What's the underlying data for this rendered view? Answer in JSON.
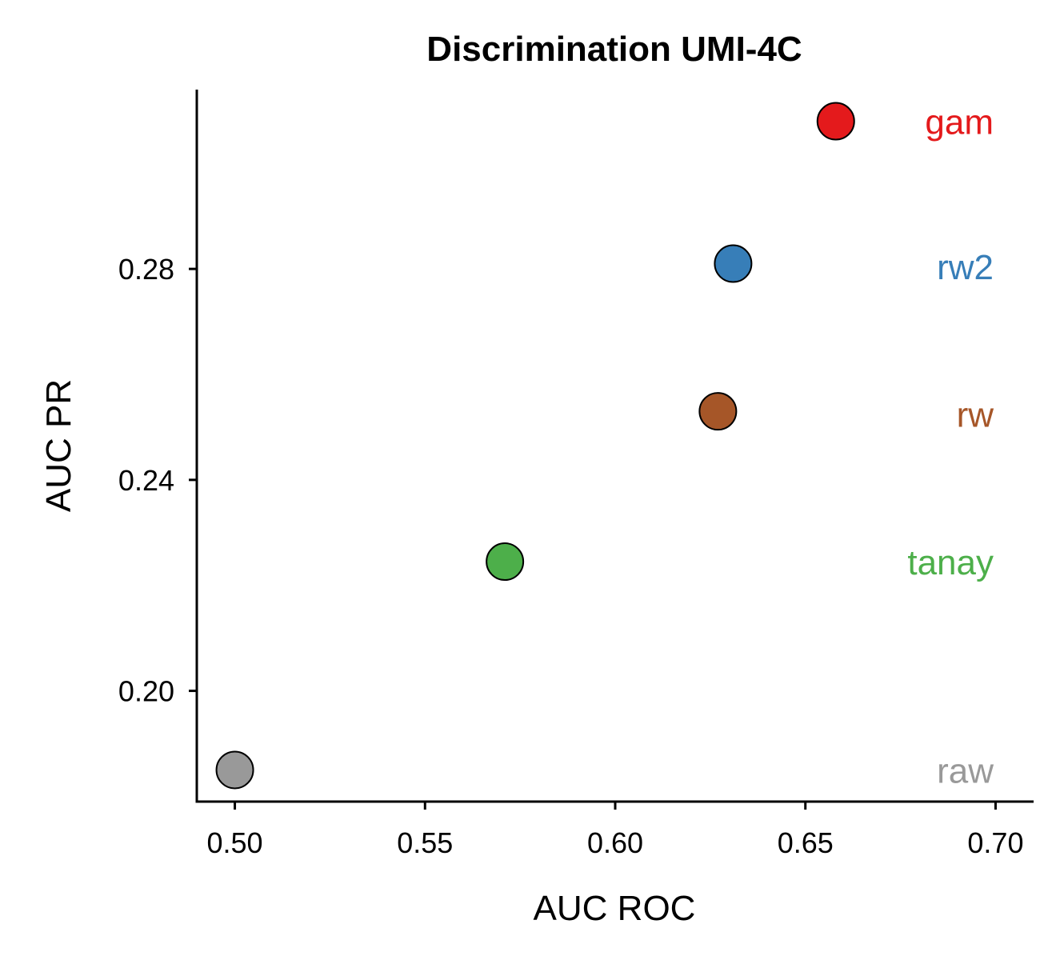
{
  "chart_data": {
    "type": "scatter",
    "title": "Discrimination UMI-4C",
    "xlabel": "AUC ROC",
    "ylabel": "AUC PR",
    "xlim": [
      0.49,
      0.71
    ],
    "ylim": [
      0.179,
      0.314
    ],
    "xticks": [
      0.5,
      0.55,
      0.6,
      0.65,
      0.7
    ],
    "xtick_labels": [
      "0.50",
      "0.55",
      "0.60",
      "0.65",
      "0.70"
    ],
    "yticks": [
      0.2,
      0.24,
      0.28
    ],
    "ytick_labels": [
      "0.20",
      "0.24",
      "0.28"
    ],
    "grid": false,
    "legend": "direct labels at right",
    "points": [
      {
        "name": "gam",
        "x": 0.658,
        "y": 0.308,
        "color": "#e41a1c",
        "label_y": 0.308
      },
      {
        "name": "rw2",
        "x": 0.631,
        "y": 0.281,
        "color": "#377eb8",
        "label_y": 0.2805
      },
      {
        "name": "rw",
        "x": 0.627,
        "y": 0.253,
        "color": "#a65628",
        "label_y": 0.2525
      },
      {
        "name": "tanay",
        "x": 0.571,
        "y": 0.2245,
        "color": "#4daf4a",
        "label_y": 0.2245
      },
      {
        "name": "raw",
        "x": 0.5,
        "y": 0.185,
        "color": "#999999",
        "label_y": 0.185
      }
    ]
  }
}
